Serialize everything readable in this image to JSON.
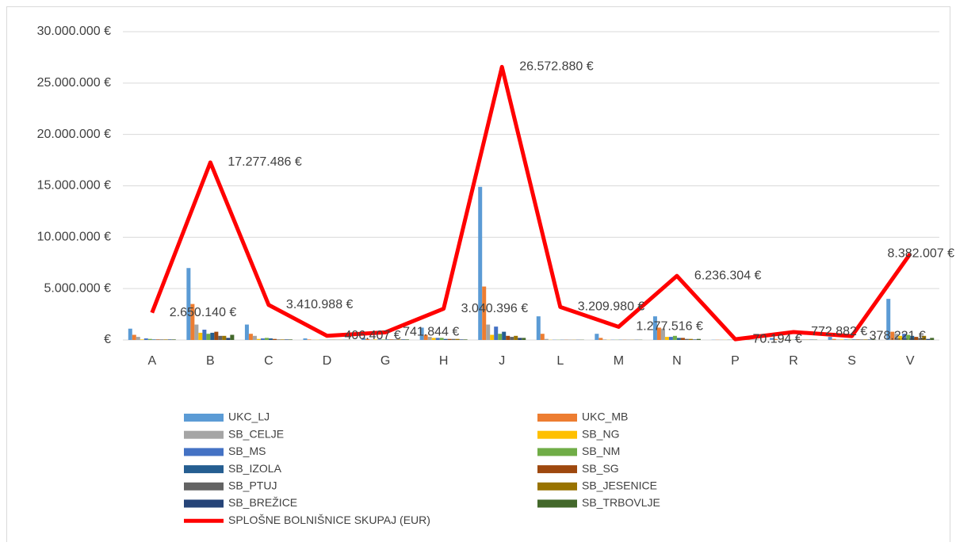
{
  "chart_data": {
    "type": "bar-line",
    "categories": [
      "A",
      "B",
      "C",
      "D",
      "G",
      "H",
      "J",
      "L",
      "M",
      "N",
      "P",
      "R",
      "S",
      "V"
    ],
    "ylim": [
      0,
      30000000
    ],
    "yticks": [
      {
        "value": 0,
        "label": "€"
      },
      {
        "value": 5000000,
        "label": "5.000.000 €"
      },
      {
        "value": 10000000,
        "label": "10.000.000 €"
      },
      {
        "value": 15000000,
        "label": "15.000.000 €"
      },
      {
        "value": 20000000,
        "label": "20.000.000 €"
      },
      {
        "value": 25000000,
        "label": "25.000.000 €"
      },
      {
        "value": 30000000,
        "label": "30.000.000 €"
      }
    ],
    "grid": true,
    "series": [
      {
        "name": "UKC_LJ",
        "color": "#5b9bd5",
        "values": [
          1100000,
          7000000,
          1500000,
          150000,
          200000,
          1200000,
          14900000,
          2300000,
          600000,
          2300000,
          20000,
          200000,
          300000,
          4000000
        ]
      },
      {
        "name": "UKC_MB",
        "color": "#ed7d31",
        "values": [
          500000,
          3500000,
          600000,
          50000,
          100000,
          500000,
          5200000,
          600000,
          200000,
          1200000,
          20000,
          100000,
          100000,
          800000
        ]
      },
      {
        "name": "SB_CELJE",
        "color": "#a5a5a5",
        "values": [
          300000,
          1500000,
          400000,
          20000,
          50000,
          300000,
          1500000,
          100000,
          50000,
          1100000,
          20000,
          30000,
          50000,
          600000
        ]
      },
      {
        "name": "SB_NG",
        "color": "#ffc000",
        "values": [
          50000,
          700000,
          100000,
          20000,
          50000,
          200000,
          500000,
          20000,
          20000,
          300000,
          20000,
          30000,
          50000,
          400000
        ]
      },
      {
        "name": "SB_MS",
        "color": "#4472c4",
        "values": [
          150000,
          1000000,
          150000,
          20000,
          50000,
          200000,
          1300000,
          20000,
          20000,
          300000,
          20000,
          30000,
          50000,
          600000
        ]
      },
      {
        "name": "SB_NM",
        "color": "#70ad47",
        "values": [
          100000,
          600000,
          200000,
          20000,
          50000,
          200000,
          600000,
          20000,
          20000,
          400000,
          20000,
          30000,
          50000,
          500000
        ]
      },
      {
        "name": "SB_IZOLA",
        "color": "#255e91",
        "values": [
          50000,
          700000,
          150000,
          20000,
          50000,
          100000,
          800000,
          20000,
          20000,
          200000,
          20000,
          30000,
          50000,
          400000
        ]
      },
      {
        "name": "SB_SG",
        "color": "#9e480e",
        "values": [
          50000,
          800000,
          100000,
          20000,
          50000,
          100000,
          400000,
          20000,
          20000,
          200000,
          20000,
          30000,
          50000,
          300000
        ]
      },
      {
        "name": "SB_PTUJ",
        "color": "#636363",
        "values": [
          50000,
          400000,
          50000,
          20000,
          50000,
          100000,
          300000,
          20000,
          20000,
          100000,
          20000,
          30000,
          50000,
          200000
        ]
      },
      {
        "name": "SB_JESENICE",
        "color": "#997300",
        "values": [
          50000,
          400000,
          50000,
          20000,
          50000,
          100000,
          400000,
          20000,
          20000,
          100000,
          20000,
          30000,
          50000,
          400000
        ]
      },
      {
        "name": "SB_BREŽICE",
        "color": "#264478",
        "values": [
          50000,
          200000,
          50000,
          20000,
          50000,
          50000,
          200000,
          20000,
          20000,
          50000,
          20000,
          30000,
          50000,
          100000
        ]
      },
      {
        "name": "SB_TRBOVLJE",
        "color": "#43682b",
        "values": [
          50000,
          500000,
          50000,
          20000,
          50000,
          50000,
          200000,
          20000,
          20000,
          100000,
          20000,
          30000,
          50000,
          200000
        ]
      }
    ],
    "line": {
      "name": "SPLOŠNE BOLNIŠNICE SKUPAJ (EUR)",
      "color": "#ff0000",
      "values": [
        2650140,
        17277486,
        3410988,
        406407,
        741844,
        3040396,
        26572880,
        3209980,
        1277516,
        6236304,
        70194,
        772882,
        378221,
        8382007
      ],
      "value_labels": [
        "2.650.140 €",
        "17.277.486 €",
        "3.410.988 €",
        "406.407 €",
        "741.844 €",
        "3.040.396 €",
        "26.572.880 €",
        "3.209.980 €",
        "1.277.516 €",
        "6.236.304 €",
        "70.194 €",
        "772.882 €",
        "378.221 €",
        "8.382.007 €"
      ]
    }
  }
}
